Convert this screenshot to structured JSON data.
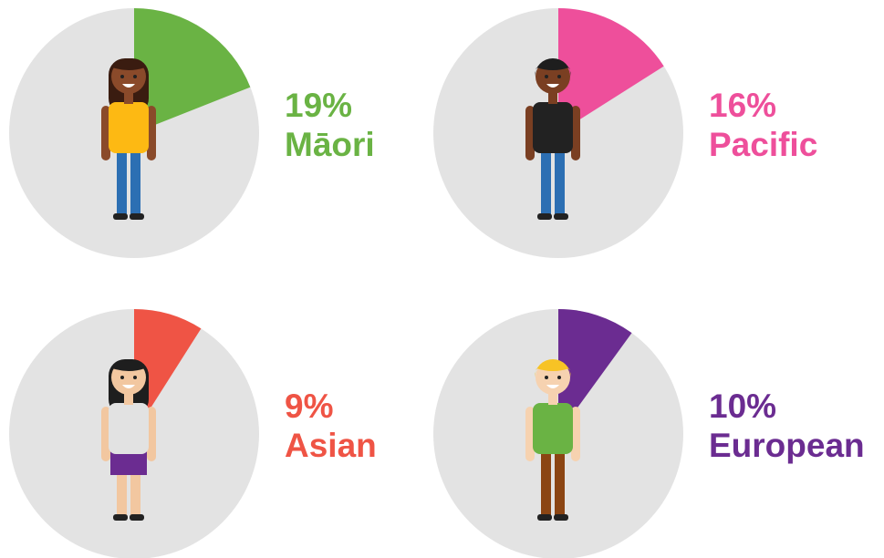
{
  "chart_data": [
    {
      "type": "pie",
      "categories": [
        "Māori"
      ],
      "values": [
        19
      ],
      "value_labels": [
        "19%"
      ],
      "color": "#6ab344"
    },
    {
      "type": "pie",
      "categories": [
        "Pacific"
      ],
      "values": [
        16
      ],
      "value_labels": [
        "16%"
      ],
      "color": "#ee4f9b"
    },
    {
      "type": "pie",
      "categories": [
        "Asian"
      ],
      "values": [
        9
      ],
      "value_labels": [
        "9%"
      ],
      "color": "#ef5445"
    },
    {
      "type": "pie",
      "categories": [
        "European"
      ],
      "values": [
        10
      ],
      "value_labels": [
        "10%"
      ],
      "color": "#6b2c91"
    }
  ]
}
